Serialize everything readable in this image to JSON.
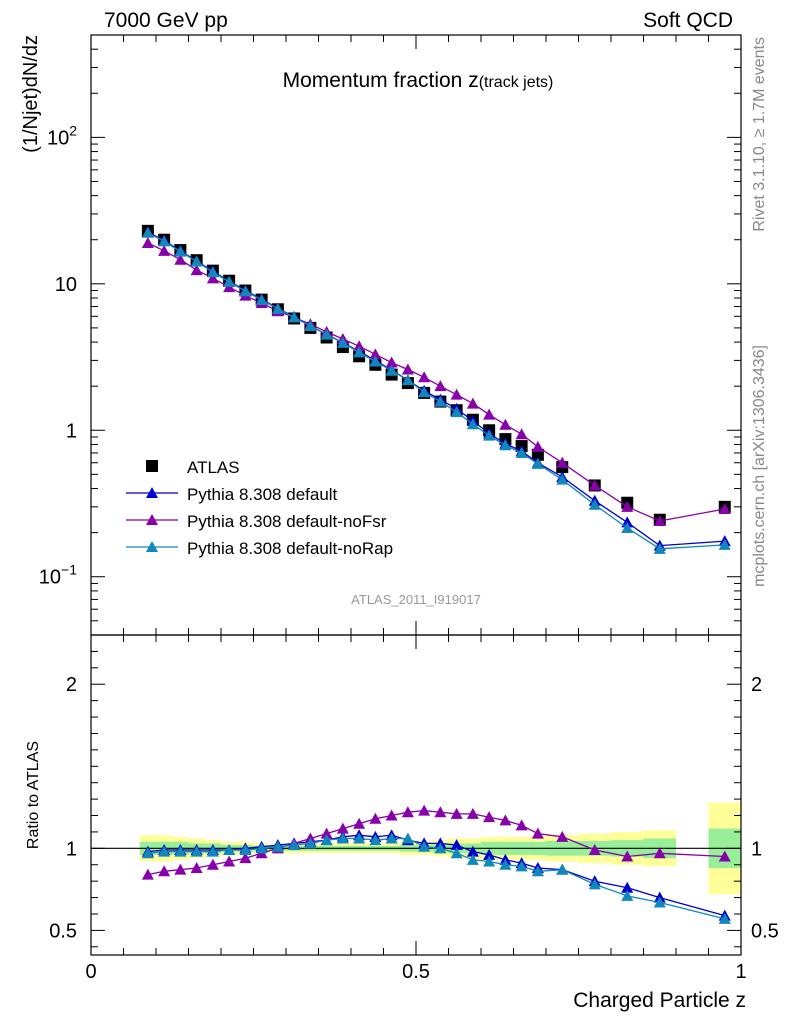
{
  "header": {
    "left": "7000 GeV pp",
    "right": "Soft QCD"
  },
  "side": {
    "rivet": "Rivet 3.1.10, ≥ 1.7M events",
    "mcplots": "mcplots.cern.ch [arXiv:1306.3436]"
  },
  "chart_data": [
    {
      "type": "scatter",
      "title_main": "Momentum fraction z",
      "title_sub": "(track jets)",
      "ylabel": "(1/Njet)dN/dz",
      "ylog": true,
      "ylim": [
        0.04,
        500
      ],
      "xlim": [
        0,
        1
      ],
      "watermark": "ATLAS_2011_I919017",
      "yticks": [
        {
          "v": 0.1,
          "base": "10",
          "exp": "−1"
        },
        {
          "v": 1,
          "base": "1",
          "exp": ""
        },
        {
          "v": 10,
          "base": "10",
          "exp": ""
        },
        {
          "v": 100,
          "base": "10",
          "exp": "2"
        }
      ],
      "legend": [
        "ATLAS",
        "Pythia 8.308 default",
        "Pythia 8.308 default-noFsr",
        "Pythia 8.308 default-noRap"
      ],
      "x": [
        0.0875,
        0.1125,
        0.1375,
        0.1625,
        0.1875,
        0.2125,
        0.2375,
        0.2625,
        0.2875,
        0.3125,
        0.3375,
        0.3625,
        0.3875,
        0.4125,
        0.4375,
        0.4625,
        0.4875,
        0.5125,
        0.5375,
        0.5625,
        0.5875,
        0.6125,
        0.6375,
        0.6625,
        0.6875,
        0.725,
        0.775,
        0.825,
        0.875,
        0.975
      ],
      "series": [
        {
          "name": "ATLAS",
          "color": "#000000",
          "marker": "square",
          "values": [
            23.0,
            20.0,
            17.0,
            14.5,
            12.3,
            10.5,
            9.0,
            7.8,
            6.7,
            5.8,
            5.0,
            4.3,
            3.7,
            3.2,
            2.8,
            2.4,
            2.1,
            1.8,
            1.57,
            1.37,
            1.18,
            1.0,
            0.87,
            0.78,
            0.68,
            0.56,
            0.42,
            0.32,
            0.245,
            0.3
          ]
        },
        {
          "name": "Pythia 8.308 default",
          "color": "#0000cc",
          "marker": "triangle",
          "values": [
            22.5,
            19.8,
            16.8,
            14.3,
            12.2,
            10.4,
            9.0,
            7.85,
            6.8,
            5.95,
            5.15,
            4.52,
            3.97,
            3.45,
            3.0,
            2.58,
            2.2,
            1.86,
            1.62,
            1.4,
            1.16,
            0.95,
            0.81,
            0.72,
            0.6,
            0.48,
            0.33,
            0.235,
            0.163,
            0.175
          ]
        },
        {
          "name": "Pythia 8.308 default-noFsr",
          "color": "#8800aa",
          "marker": "triangle",
          "values": [
            19.0,
            16.8,
            14.6,
            12.4,
            10.9,
            9.5,
            8.3,
            7.4,
            6.5,
            5.9,
            5.3,
            4.7,
            4.2,
            3.75,
            3.3,
            2.9,
            2.6,
            2.3,
            2.0,
            1.75,
            1.52,
            1.28,
            1.09,
            0.94,
            0.77,
            0.6,
            0.42,
            0.3,
            0.24,
            0.29
          ]
        },
        {
          "name": "Pythia 8.308 default-noRap",
          "color": "#1188bb",
          "marker": "triangle",
          "values": [
            22.3,
            19.5,
            16.6,
            14.2,
            12.0,
            10.3,
            8.9,
            7.75,
            6.75,
            5.9,
            5.15,
            4.5,
            3.95,
            3.4,
            2.95,
            2.55,
            2.2,
            1.82,
            1.57,
            1.33,
            1.1,
            0.92,
            0.79,
            0.7,
            0.59,
            0.46,
            0.31,
            0.215,
            0.155,
            0.165
          ]
        }
      ]
    },
    {
      "type": "scatter",
      "ylabel": "Ratio to ATLAS",
      "xlabel": "Charged Particle z",
      "ylim": [
        0.35,
        2.3
      ],
      "xlim": [
        0,
        1
      ],
      "xticks": [
        {
          "v": 0,
          "label": "0"
        },
        {
          "v": 0.5,
          "label": "0.5"
        },
        {
          "v": 1,
          "label": "1"
        }
      ],
      "yticks": [
        {
          "v": 0.5,
          "label": "0.5"
        },
        {
          "v": 1,
          "label": "1"
        },
        {
          "v": 2,
          "label": "2"
        }
      ],
      "reference": 1,
      "bands": [
        {
          "x0": 0.075,
          "x1": 0.1,
          "y0": 0.92,
          "y1": 1.08,
          "g0": 0.96,
          "g1": 1.04
        },
        {
          "x0": 0.1,
          "x1": 0.125,
          "y0": 0.92,
          "y1": 1.08,
          "g0": 0.96,
          "g1": 1.04
        },
        {
          "x0": 0.125,
          "x1": 0.15,
          "y0": 0.93,
          "y1": 1.07,
          "g0": 0.96,
          "g1": 1.04
        },
        {
          "x0": 0.15,
          "x1": 0.175,
          "y0": 0.94,
          "y1": 1.06,
          "g0": 0.97,
          "g1": 1.03
        },
        {
          "x0": 0.175,
          "x1": 0.2,
          "y0": 0.95,
          "y1": 1.05,
          "g0": 0.97,
          "g1": 1.03
        },
        {
          "x0": 0.2,
          "x1": 0.225,
          "y0": 0.96,
          "y1": 1.04,
          "g0": 0.98,
          "g1": 1.02
        },
        {
          "x0": 0.225,
          "x1": 0.25,
          "y0": 0.96,
          "y1": 1.04,
          "g0": 0.98,
          "g1": 1.02
        },
        {
          "x0": 0.25,
          "x1": 0.275,
          "y0": 0.97,
          "y1": 1.03,
          "g0": 0.985,
          "g1": 1.015
        },
        {
          "x0": 0.275,
          "x1": 0.3,
          "y0": 0.97,
          "y1": 1.03,
          "g0": 0.985,
          "g1": 1.015
        },
        {
          "x0": 0.3,
          "x1": 0.325,
          "y0": 0.97,
          "y1": 1.03,
          "g0": 0.985,
          "g1": 1.015
        },
        {
          "x0": 0.325,
          "x1": 0.35,
          "y0": 0.97,
          "y1": 1.03,
          "g0": 0.985,
          "g1": 1.015
        },
        {
          "x0": 0.35,
          "x1": 0.375,
          "y0": 0.97,
          "y1": 1.03,
          "g0": 0.985,
          "g1": 1.015
        },
        {
          "x0": 0.375,
          "x1": 0.4,
          "y0": 0.97,
          "y1": 1.03,
          "g0": 0.985,
          "g1": 1.015
        },
        {
          "x0": 0.4,
          "x1": 0.425,
          "y0": 0.97,
          "y1": 1.03,
          "g0": 0.985,
          "g1": 1.015
        },
        {
          "x0": 0.425,
          "x1": 0.45,
          "y0": 0.97,
          "y1": 1.03,
          "g0": 0.985,
          "g1": 1.015
        },
        {
          "x0": 0.45,
          "x1": 0.475,
          "y0": 0.97,
          "y1": 1.03,
          "g0": 0.985,
          "g1": 1.015
        },
        {
          "x0": 0.475,
          "x1": 0.5,
          "y0": 0.96,
          "y1": 1.04,
          "g0": 0.98,
          "g1": 1.02
        },
        {
          "x0": 0.5,
          "x1": 0.525,
          "y0": 0.96,
          "y1": 1.04,
          "g0": 0.98,
          "g1": 1.02
        },
        {
          "x0": 0.525,
          "x1": 0.55,
          "y0": 0.95,
          "y1": 1.05,
          "g0": 0.975,
          "g1": 1.025
        },
        {
          "x0": 0.55,
          "x1": 0.575,
          "y0": 0.94,
          "y1": 1.06,
          "g0": 0.97,
          "g1": 1.03
        },
        {
          "x0": 0.575,
          "x1": 0.6,
          "y0": 0.94,
          "y1": 1.06,
          "g0": 0.97,
          "g1": 1.03
        },
        {
          "x0": 0.6,
          "x1": 0.625,
          "y0": 0.93,
          "y1": 1.07,
          "g0": 0.96,
          "g1": 1.04
        },
        {
          "x0": 0.625,
          "x1": 0.65,
          "y0": 0.93,
          "y1": 1.07,
          "g0": 0.96,
          "g1": 1.04
        },
        {
          "x0": 0.65,
          "x1": 0.675,
          "y0": 0.93,
          "y1": 1.07,
          "g0": 0.96,
          "g1": 1.04
        },
        {
          "x0": 0.675,
          "x1": 0.7,
          "y0": 0.93,
          "y1": 1.07,
          "g0": 0.96,
          "g1": 1.04
        },
        {
          "x0": 0.7,
          "x1": 0.75,
          "y0": 0.92,
          "y1": 1.08,
          "g0": 0.955,
          "g1": 1.045
        },
        {
          "x0": 0.75,
          "x1": 0.8,
          "y0": 0.91,
          "y1": 1.09,
          "g0": 0.955,
          "g1": 1.045
        },
        {
          "x0": 0.8,
          "x1": 0.85,
          "y0": 0.9,
          "y1": 1.1,
          "g0": 0.95,
          "g1": 1.05
        },
        {
          "x0": 0.85,
          "x1": 0.9,
          "y0": 0.89,
          "y1": 1.11,
          "g0": 0.94,
          "g1": 1.06
        },
        {
          "x0": 0.95,
          "x1": 1.0,
          "y0": 0.72,
          "y1": 1.28,
          "g0": 0.88,
          "g1": 1.12
        }
      ],
      "x": [
        0.0875,
        0.1125,
        0.1375,
        0.1625,
        0.1875,
        0.2125,
        0.2375,
        0.2625,
        0.2875,
        0.3125,
        0.3375,
        0.3625,
        0.3875,
        0.4125,
        0.4375,
        0.4625,
        0.4875,
        0.5125,
        0.5375,
        0.5625,
        0.5875,
        0.6125,
        0.6375,
        0.6625,
        0.6875,
        0.725,
        0.775,
        0.825,
        0.875,
        0.975
      ],
      "series": [
        {
          "name": "Pythia 8.308 default",
          "color": "#0000cc",
          "values": [
            0.98,
            0.99,
            0.99,
            0.99,
            0.99,
            0.99,
            1.0,
            1.01,
            1.02,
            1.03,
            1.04,
            1.05,
            1.07,
            1.08,
            1.07,
            1.08,
            1.05,
            1.03,
            1.03,
            1.02,
            0.98,
            0.96,
            0.93,
            0.91,
            0.88,
            0.87,
            0.8,
            0.76,
            0.7,
            0.59
          ]
        },
        {
          "name": "Pythia 8.308 default-noFsr",
          "color": "#8800aa",
          "values": [
            0.84,
            0.86,
            0.87,
            0.88,
            0.9,
            0.92,
            0.94,
            0.97,
            1.0,
            1.03,
            1.06,
            1.09,
            1.12,
            1.15,
            1.18,
            1.2,
            1.22,
            1.23,
            1.22,
            1.21,
            1.21,
            1.19,
            1.17,
            1.14,
            1.09,
            1.07,
            0.99,
            0.95,
            0.97,
            0.95
          ]
        },
        {
          "name": "Pythia 8.308 default-noRap",
          "color": "#1188bb",
          "values": [
            0.97,
            0.98,
            0.98,
            0.98,
            0.98,
            0.99,
            0.99,
            1.0,
            1.01,
            1.02,
            1.03,
            1.05,
            1.06,
            1.06,
            1.05,
            1.06,
            1.06,
            1.01,
            1.0,
            0.97,
            0.93,
            0.92,
            0.9,
            0.89,
            0.86,
            0.87,
            0.78,
            0.71,
            0.67,
            0.57
          ]
        }
      ]
    }
  ]
}
